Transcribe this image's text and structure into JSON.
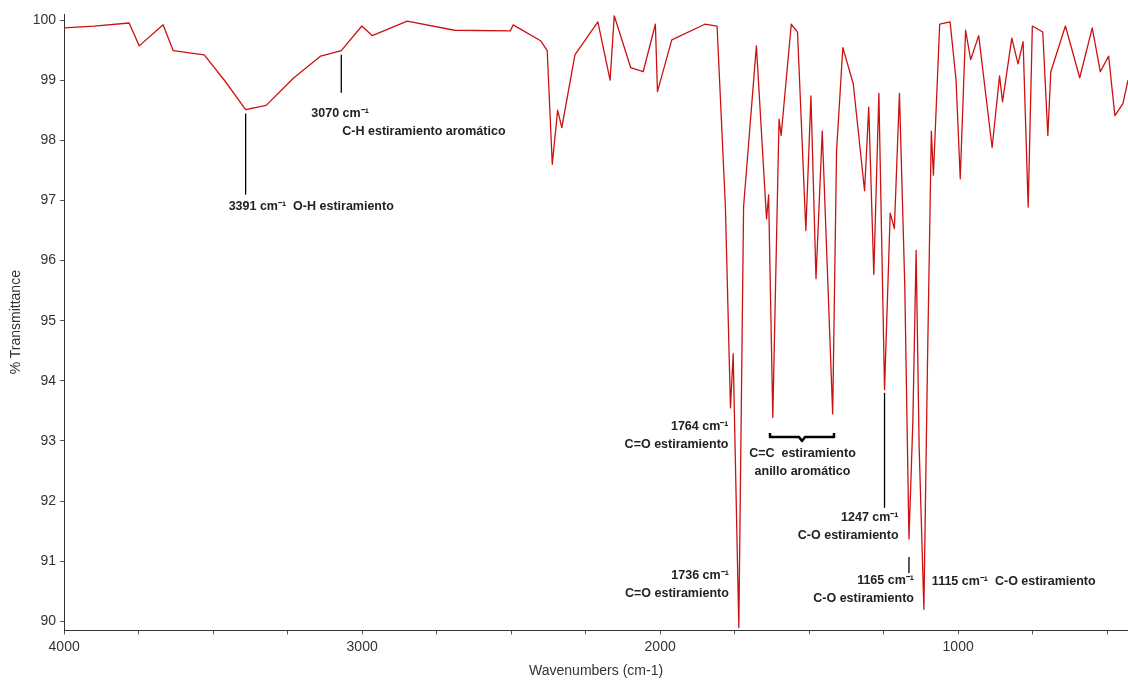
{
  "chart_data": {
    "type": "line",
    "xlabel": "Wavenumbers (cm-1)",
    "ylabel": "% Transmittance",
    "xlim": [
      4000,
      430
    ],
    "xticks": [
      4000,
      {
        "value": 3750,
        "label": null
      },
      {
        "value": 3500,
        "label": null
      },
      {
        "value": 3250,
        "label": null
      },
      3000,
      {
        "value": 2750,
        "label": null
      },
      {
        "value": 2500,
        "label": null
      },
      {
        "value": 2250,
        "label": null
      },
      2000,
      {
        "value": 1750,
        "label": null
      },
      {
        "value": 1500,
        "label": null
      },
      {
        "value": 1250,
        "label": null
      },
      1000,
      {
        "value": 750,
        "label": null
      },
      {
        "value": 500,
        "label": null
      }
    ],
    "ylim": [
      89.85,
      100.1
    ],
    "yticks": [
      90,
      91,
      92,
      93,
      94,
      95,
      96,
      97,
      98,
      99,
      100
    ],
    "grid": false,
    "legend": false,
    "marker": "none",
    "line_style": "solid",
    "series": [
      {
        "color": "#cc1111",
        "x": [
          4000,
          3900,
          3782,
          3748,
          3668,
          3634,
          3530,
          3461,
          3391,
          3322,
          3229,
          3139,
          3070,
          3001,
          2966,
          2849,
          2690,
          2503,
          2493,
          2400,
          2379,
          2362,
          2344,
          2330,
          2286,
          2209,
          2168,
          2154,
          2099,
          2057,
          2016,
          2009,
          1961,
          1850,
          1809,
          1781,
          1764,
          1755,
          1736,
          1720,
          1677,
          1643,
          1636,
          1622,
          1601,
          1594,
          1560,
          1539,
          1511,
          1494,
          1477,
          1456,
          1421,
          1408,
          1387,
          1352,
          1314,
          1300,
          1283,
          1266,
          1247,
          1228,
          1214,
          1197,
          1179,
          1165,
          1152,
          1141,
          1131,
          1115,
          1103,
          1090,
          1083,
          1062,
          1027,
          1007,
          993,
          975,
          958,
          931,
          886,
          861,
          851,
          820,
          799,
          782,
          765,
          751,
          716,
          699,
          689,
          640,
          592,
          550,
          523,
          495,
          474,
          447,
          430
        ],
        "values": [
          99.87,
          99.9,
          99.95,
          99.57,
          99.92,
          99.49,
          99.42,
          98.99,
          98.51,
          98.58,
          99.04,
          99.4,
          99.49,
          99.9,
          99.74,
          99.98,
          99.83,
          99.82,
          99.92,
          99.65,
          99.49,
          97.6,
          98.5,
          98.21,
          99.42,
          99.97,
          99.0,
          100.07,
          99.21,
          99.14,
          99.93,
          98.81,
          99.67,
          99.93,
          99.9,
          96.89,
          93.55,
          94.45,
          89.9,
          96.9,
          99.57,
          96.69,
          97.09,
          93.39,
          98.35,
          98.08,
          99.93,
          99.8,
          96.5,
          98.74,
          95.7,
          98.15,
          93.45,
          97.82,
          99.54,
          98.94,
          97.16,
          98.55,
          95.77,
          98.78,
          93.85,
          96.79,
          96.53,
          98.78,
          95.57,
          91.37,
          93.32,
          96.17,
          92.93,
          90.2,
          94.25,
          98.15,
          97.42,
          99.93,
          99.97,
          99.0,
          97.36,
          99.83,
          99.34,
          99.74,
          97.88,
          99.07,
          98.64,
          99.7,
          99.27,
          99.64,
          96.89,
          99.9,
          99.8,
          98.08,
          99.14,
          99.9,
          99.04,
          99.87,
          99.14,
          99.4,
          98.41,
          98.61,
          99.0
        ]
      }
    ],
    "annotations": [
      {
        "text": "3391 cm⁻¹  O-H estiramiento",
        "x": 3391,
        "y": 98.51
      },
      {
        "text": "3070 cm⁻¹\nC-H estiramiento aromático",
        "x": 3070,
        "y": 99.49
      },
      {
        "text": "1764 cm⁻¹\nC=O estiramiento",
        "x": 1764,
        "y": 93.55
      },
      {
        "text": "1736 cm⁻¹\nC=O estiramiento",
        "x": 1736,
        "y": 89.9
      },
      "C=C  estiramiento\nanillo aromático",
      {
        "text": "1247 cm⁻¹\nC-O estiramiento",
        "x": 1247,
        "y": 93.85
      },
      {
        "text": "1165 cm⁻¹\nC-O estiramiento",
        "x": 1165,
        "y": 91.37
      },
      {
        "text": "1115 cm⁻¹  C-O estiramiento",
        "x": 1115,
        "y": 90.2
      }
    ]
  }
}
